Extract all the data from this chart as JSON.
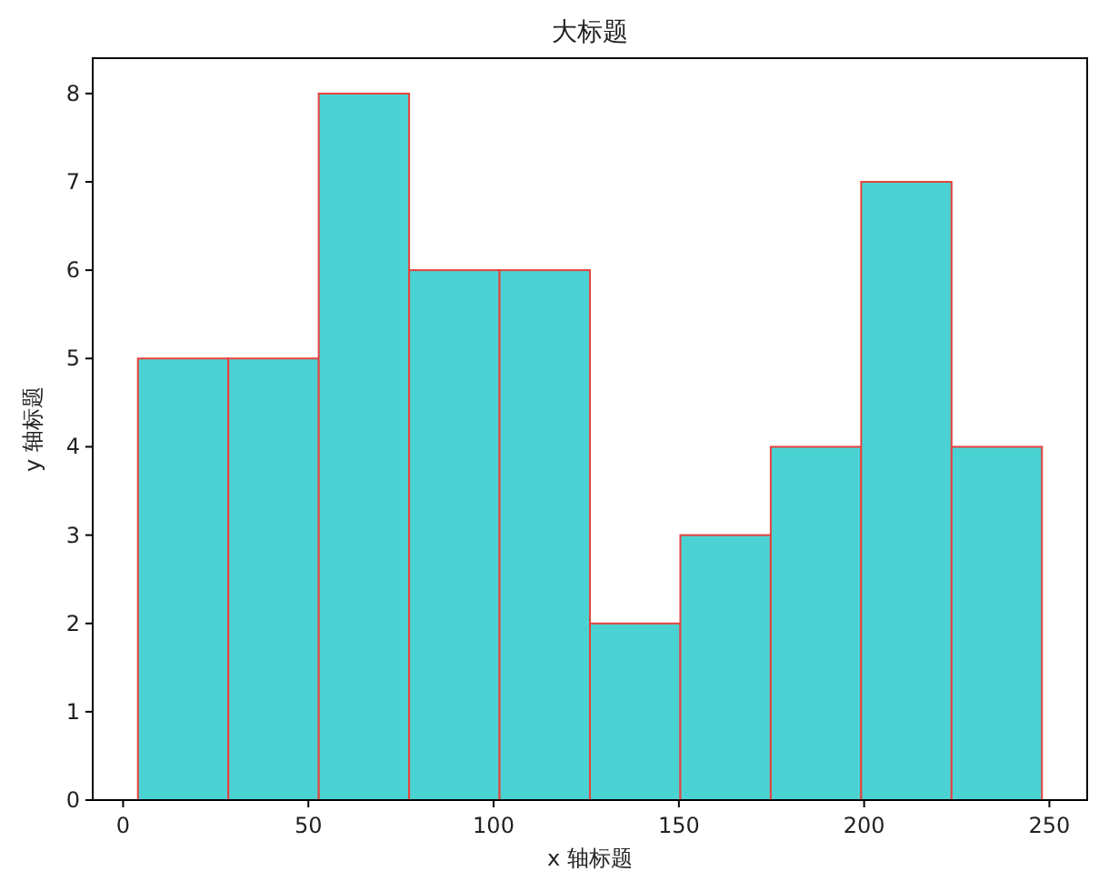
{
  "chart_data": {
    "type": "histogram",
    "title": "大标题",
    "xlabel": "x 轴标题",
    "ylabel": "y 轴标题",
    "bins": [
      4,
      28.4,
      52.8,
      77.2,
      101.6,
      126,
      150.4,
      174.8,
      199.2,
      223.6,
      248
    ],
    "values": [
      5,
      5,
      8,
      6,
      6,
      2,
      3,
      4,
      7,
      4
    ],
    "color": "#4bd3d4",
    "xlim": [
      -8.2,
      260.2
    ],
    "ylim": [
      0,
      8.4
    ],
    "xticks": [
      0,
      50,
      100,
      150,
      200,
      250
    ],
    "yticks": [
      0,
      1,
      2,
      3,
      4,
      5,
      6,
      7,
      8
    ]
  }
}
